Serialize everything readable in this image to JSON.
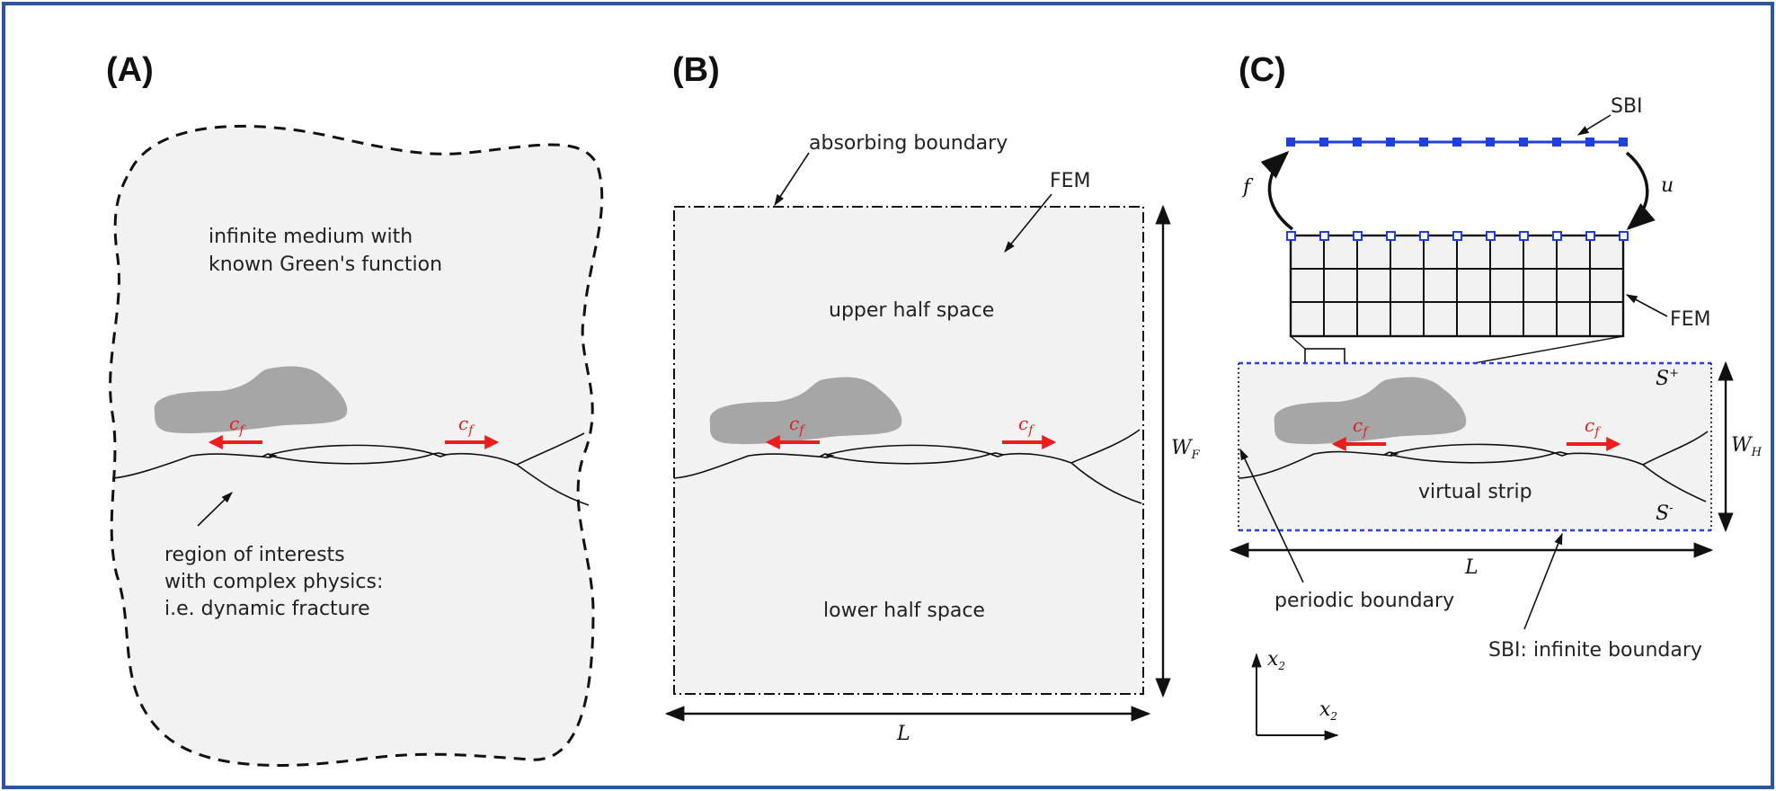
{
  "colors": {
    "frame": "#2d5597",
    "medium_fill": "#f2f2f2",
    "inclusion": "#a6a6a6",
    "arrow_red": "#ee1d1d",
    "sbi_blue": "#1f3fe0",
    "dotted_blue": "#2b3fe6"
  },
  "panels": {
    "a": {
      "label": "(A)",
      "medium_text": [
        "infinite medium with",
        "known Green's function"
      ],
      "region_text": [
        "region of interests",
        "with complex physics:",
        "i.e. dynamic fracture"
      ],
      "velocity_symbol": "c",
      "velocity_sub": "f"
    },
    "b": {
      "label": "(B)",
      "absorbing": "absorbing boundary",
      "fem": "FEM",
      "upper": "upper half space",
      "lower": "lower half space",
      "width_symbol": "W",
      "width_sub": "F",
      "length_symbol": "L",
      "velocity_symbol": "c",
      "velocity_sub": "f"
    },
    "c": {
      "label": "(C)",
      "sbi": "SBI",
      "f_symbol": "f",
      "u_symbol": "u",
      "fem": "FEM",
      "s_plus": "S",
      "s_plus_sup": "+",
      "s_minus": "S",
      "s_minus_sup": "-",
      "width_symbol": "W",
      "width_sub": "H",
      "virtual_strip": "virtual strip",
      "length_symbol": "L",
      "periodic": "periodic boundary",
      "sbi_infinite": "SBI: infinite boundary",
      "axis_x2_vertical": "x",
      "axis_x2_vertical_sub": "2",
      "axis_x2_horizontal": "x",
      "axis_x2_horizontal_sub": "2",
      "velocity_symbol": "c",
      "velocity_sub": "f"
    }
  }
}
